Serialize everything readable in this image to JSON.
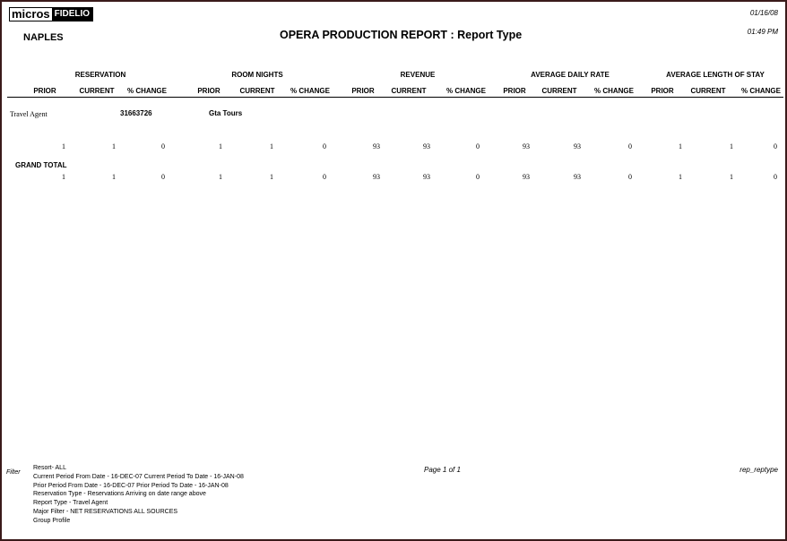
{
  "logo": {
    "left": "micros",
    "right": "FIDELIO"
  },
  "property": "NAPLES",
  "title": "OPERA PRODUCTION REPORT : Report Type",
  "date": "01/16/08",
  "time": "01:49 PM",
  "groups": [
    "RESERVATION",
    "ROOM NIGHTS",
    "REVENUE",
    "AVERAGE DAILY RATE",
    "AVERAGE LENGTH OF STAY"
  ],
  "subcols": [
    "PRIOR",
    "CURRENT",
    "% CHANGE"
  ],
  "section": {
    "label": "Travel Agent",
    "id": "31663726",
    "name": "Gta Tours"
  },
  "row": [
    "1",
    "1",
    "0",
    "1",
    "1",
    "0",
    "93",
    "93",
    "0",
    "93",
    "93",
    "0",
    "1",
    "1",
    "0"
  ],
  "grand_total": {
    "label": "GRAND TOTAL",
    "values": [
      "1",
      "1",
      "0",
      "1",
      "1",
      "0",
      "93",
      "93",
      "0",
      "93",
      "93",
      "0",
      "1",
      "1",
      "0"
    ]
  },
  "footer": {
    "filter_label": "Filter",
    "page": "Page 1 of 1",
    "report_id": "rep_reptype",
    "lines": [
      "Resort-  ALL",
      "Current Period From Date -  16-DEC-07   Current Period To Date -  16-JAN-08",
      "Prior Period From Date -  16-DEC-07   Prior Period To Date -  16-JAN-08",
      "Reservation Type -  Reservations Arriving on date range above",
      "Report Type -  Travel Agent",
      "Major Filter -  NET RESERVATIONS ALL SOURCES",
      "Group Profile"
    ]
  }
}
